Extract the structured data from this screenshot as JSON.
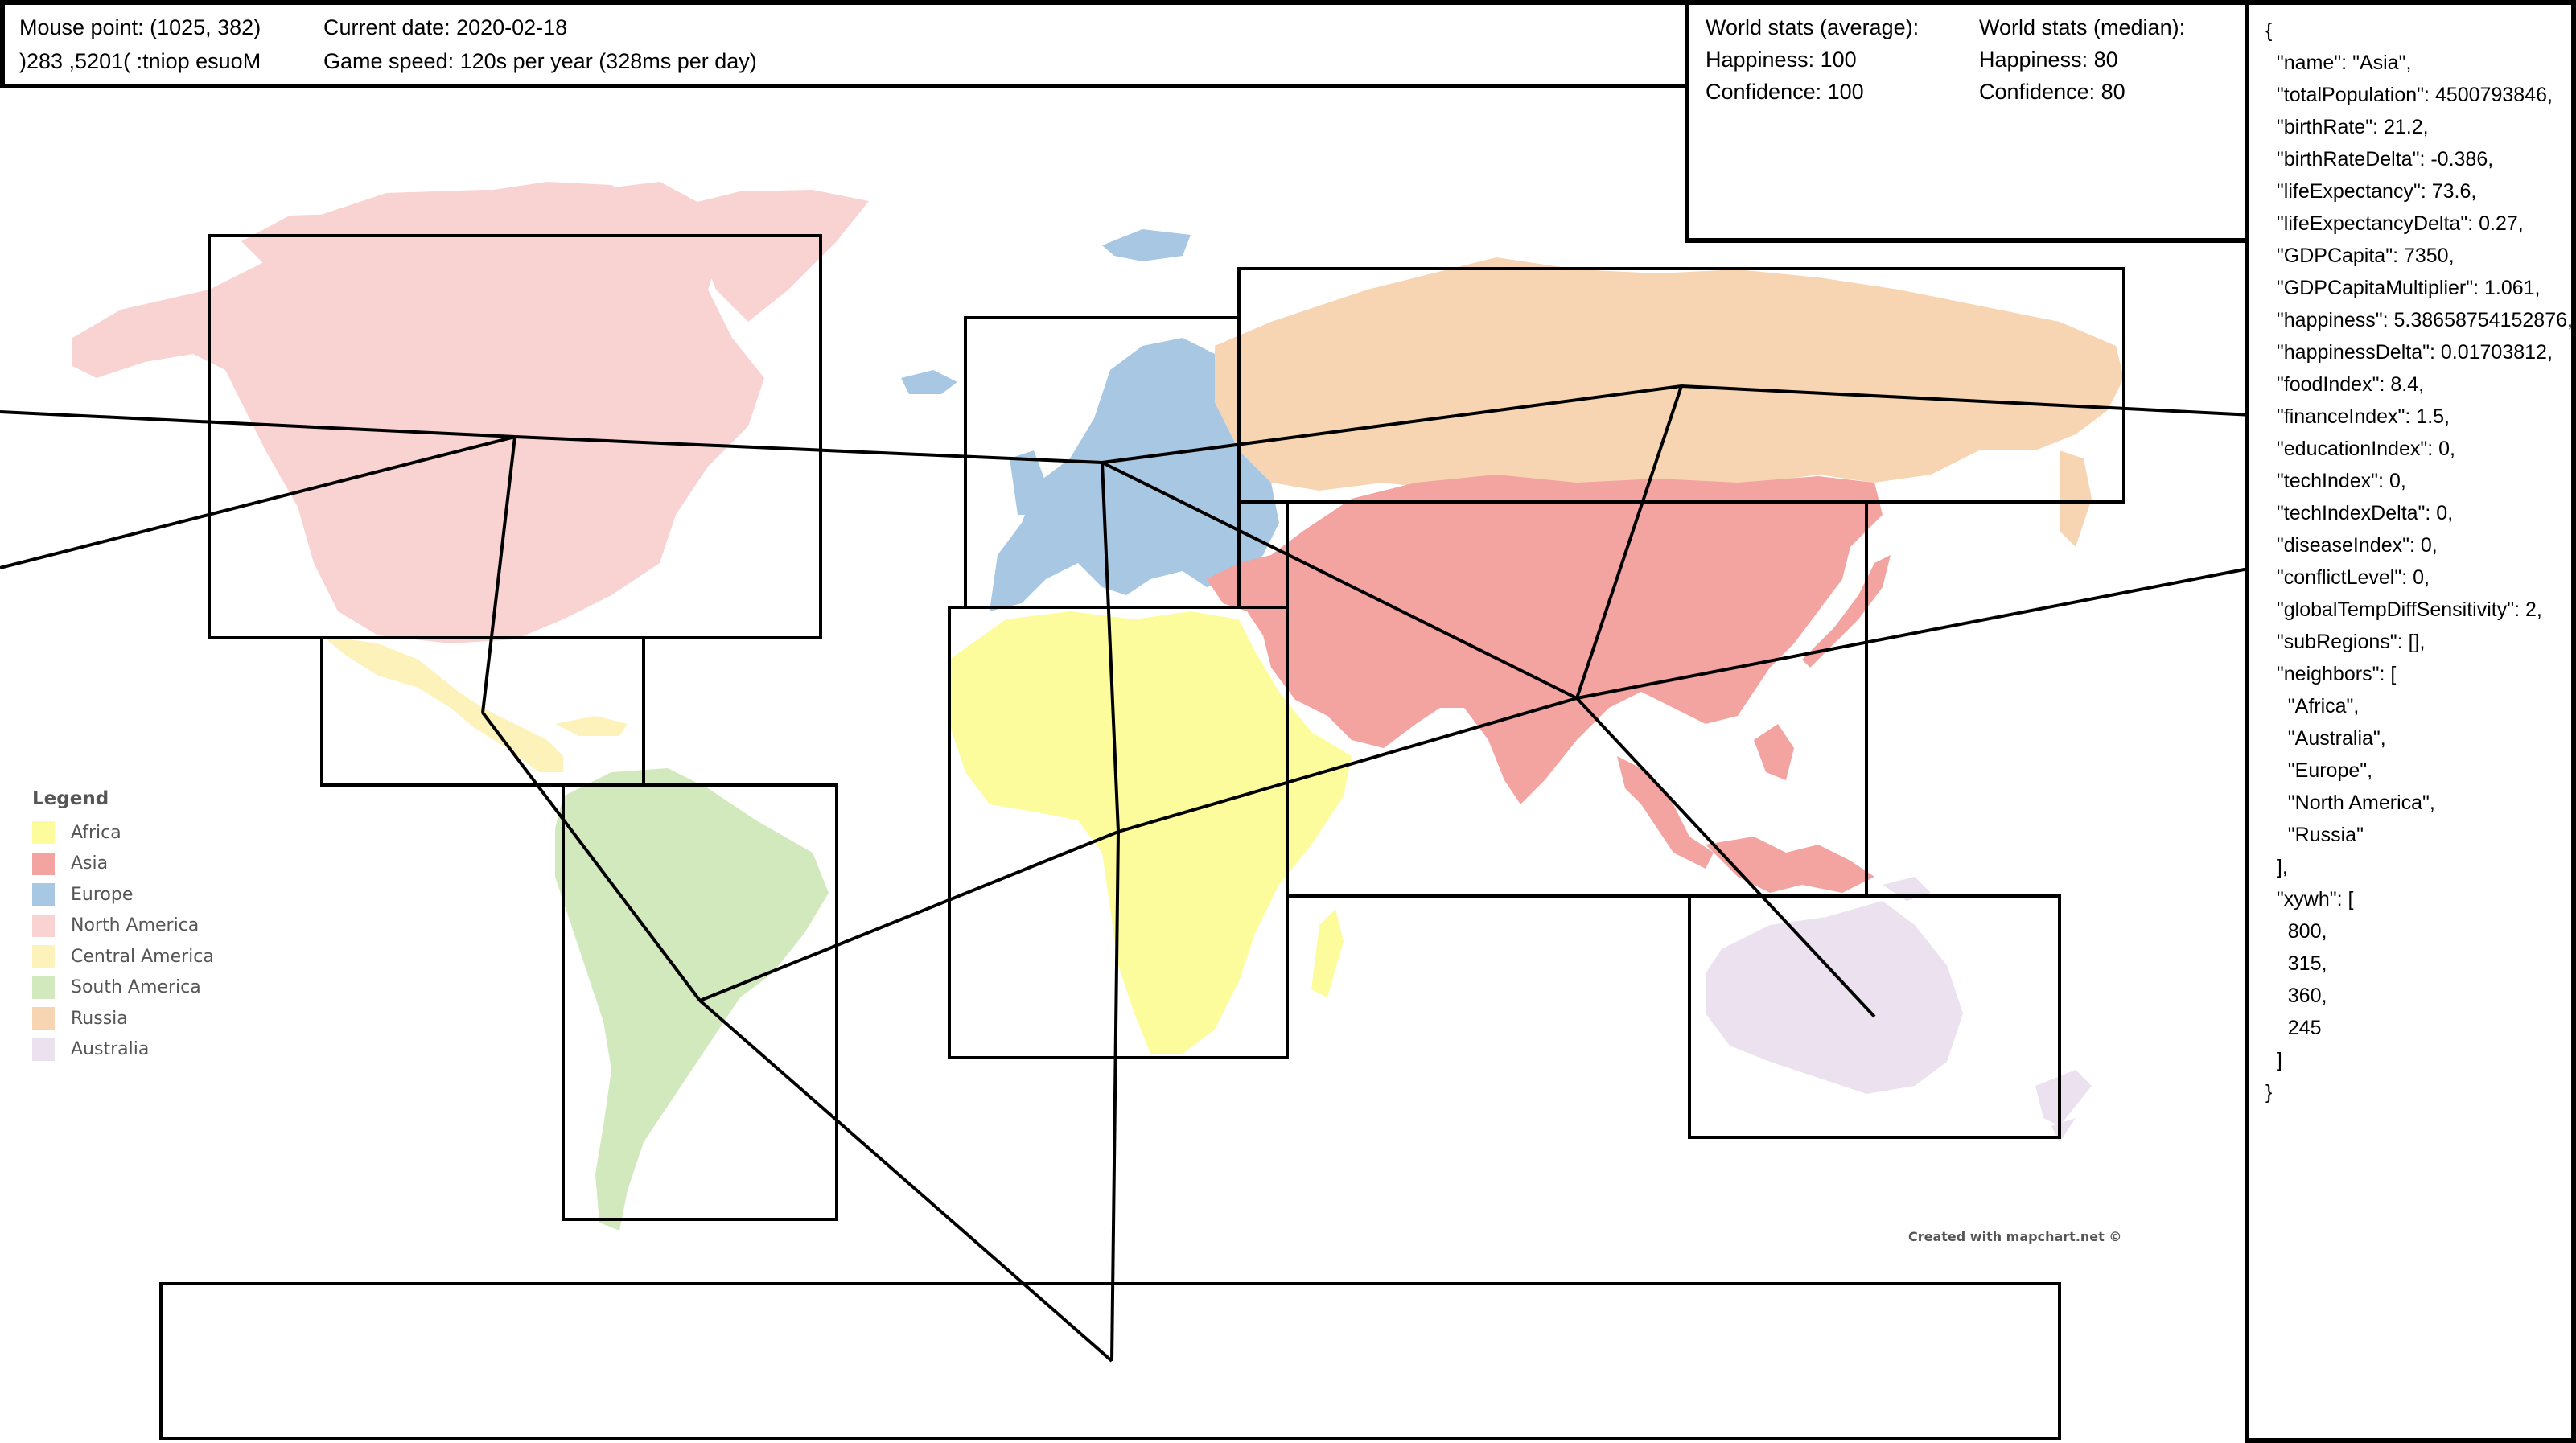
{
  "status": {
    "mouse_point": "Mouse point: (1025, 382)",
    "mouse_point_mirrored": ")283 ,5201( :tniop esuoM",
    "current_date": "Current date: 2020-02-18",
    "game_speed": "Game speed: 120s per year (328ms per day)"
  },
  "world_stats": {
    "average_label": "World stats (average):",
    "average_happiness": "Happiness: 100",
    "average_confidence": "Confidence: 100",
    "median_label": "World stats (median):",
    "median_happiness": "Happiness: 80",
    "median_confidence": "Confidence: 80"
  },
  "region_json": "{\n  \"name\": \"Asia\",\n  \"totalPopulation\": 4500793846,\n  \"birthRate\": 21.2,\n  \"birthRateDelta\": -0.386,\n  \"lifeExpectancy\": 73.6,\n  \"lifeExpectancyDelta\": 0.27,\n  \"GDPCapita\": 7350,\n  \"GDPCapitaMultiplier\": 1.061,\n  \"happiness\": 5.38658754152876,\n  \"happinessDelta\": 0.01703812,\n  \"foodIndex\": 8.4,\n  \"financeIndex\": 1.5,\n  \"educationIndex\": 0,\n  \"techIndex\": 0,\n  \"techIndexDelta\": 0,\n  \"diseaseIndex\": 0,\n  \"conflictLevel\": 0,\n  \"globalTempDiffSensitivity\": 2,\n  \"subRegions\": [],\n  \"neighbors\": [\n    \"Africa\",\n    \"Australia\",\n    \"Europe\",\n    \"North America\",\n    \"Russia\"\n  ],\n  \"xywh\": [\n    800,\n    315,\n    360,\n    245\n  ]\n}",
  "legend": {
    "title": "Legend",
    "items": [
      {
        "label": "Africa",
        "color": "#fdfc9c"
      },
      {
        "label": "Asia",
        "color": "#f3a3a0"
      },
      {
        "label": "Europe",
        "color": "#a8c7e2"
      },
      {
        "label": "North America",
        "color": "#f8d3d2"
      },
      {
        "label": "Central America",
        "color": "#fdf2b9"
      },
      {
        "label": "South America",
        "color": "#d2e8bd"
      },
      {
        "label": "Russia",
        "color": "#f7d4b2"
      },
      {
        "label": "Australia",
        "color": "#ebe1ef"
      }
    ]
  },
  "credit": "Created with mapchart.net ©"
}
